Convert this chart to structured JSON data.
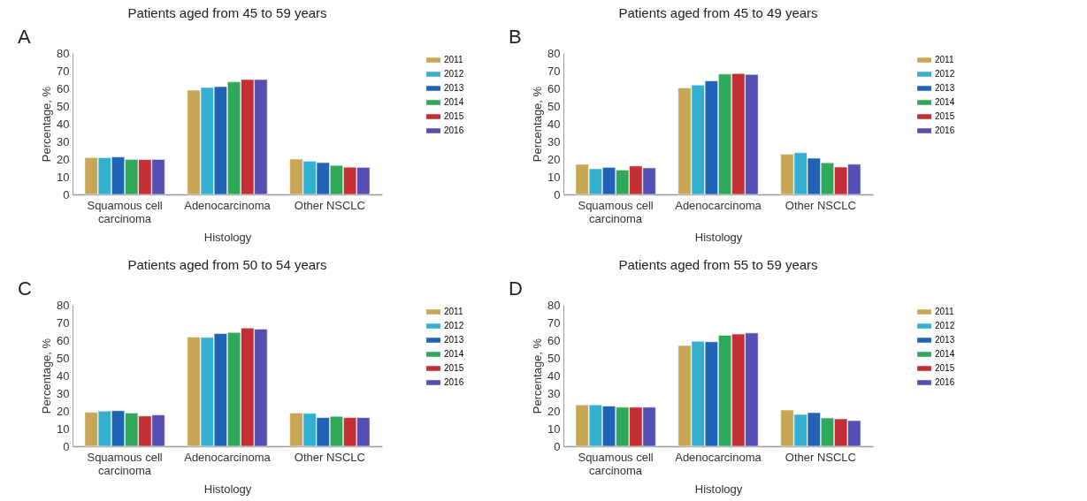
{
  "chart_data": [
    {
      "type": "bar",
      "title": "Patients aged from 45 to 59 years",
      "xlabel": "Histology",
      "ylabel": "Percentage, %",
      "annotations": [
        "A"
      ],
      "categories": [
        "Squamous cell carcinoma",
        "Adenocarcinoma",
        "Other NSCLC"
      ],
      "series": [
        {
          "name": "2011",
          "color": "#c9a656",
          "values": [
            20.8,
            59,
            20
          ]
        },
        {
          "name": "2012",
          "color": "#33afd0",
          "values": [
            20.8,
            60.5,
            18.8
          ]
        },
        {
          "name": "2013",
          "color": "#2062b5",
          "values": [
            21.2,
            61,
            18
          ]
        },
        {
          "name": "2014",
          "color": "#2fa85a",
          "values": [
            19.8,
            63.7,
            16.4
          ]
        },
        {
          "name": "2015",
          "color": "#c42f35",
          "values": [
            19.7,
            65,
            15.4
          ]
        },
        {
          "name": "2016",
          "color": "#564fb3",
          "values": [
            19.8,
            65,
            15.3
          ]
        }
      ],
      "ylim": [
        0,
        80
      ],
      "yticks": [
        0,
        10,
        20,
        30,
        40,
        50,
        60,
        70,
        80
      ],
      "grid": false,
      "legend": "top right"
    },
    {
      "type": "bar",
      "title": "Patients aged from 45 to 49 years",
      "xlabel": "Histology",
      "ylabel": "Percentage, %",
      "annotations": [
        "B"
      ],
      "categories": [
        "Squamous cell carcinoma",
        "Adenocarcinoma",
        "Other NSCLC"
      ],
      "series": [
        {
          "name": "2011",
          "color": "#c9a656",
          "values": [
            17,
            60.3,
            22.8
          ]
        },
        {
          "name": "2012",
          "color": "#33afd0",
          "values": [
            14.5,
            61.9,
            23.6
          ]
        },
        {
          "name": "2013",
          "color": "#2062b5",
          "values": [
            15.3,
            64.2,
            20.5
          ]
        },
        {
          "name": "2014",
          "color": "#2fa85a",
          "values": [
            13.8,
            68.1,
            17.9
          ]
        },
        {
          "name": "2015",
          "color": "#c42f35",
          "values": [
            16.1,
            68.4,
            15.5
          ]
        },
        {
          "name": "2016",
          "color": "#564fb3",
          "values": [
            15,
            67.9,
            17.1
          ]
        }
      ],
      "ylim": [
        0,
        80
      ],
      "yticks": [
        0,
        10,
        20,
        30,
        40,
        50,
        60,
        70,
        80
      ],
      "grid": false,
      "legend": "top right"
    },
    {
      "type": "bar",
      "title": "Patients aged from 50 to 54 years",
      "xlabel": "Histology",
      "ylabel": "Percentage, %",
      "annotations": [
        "C"
      ],
      "categories": [
        "Squamous cell carcinoma",
        "Adenocarcinoma",
        "Other NSCLC"
      ],
      "series": [
        {
          "name": "2011",
          "color": "#c9a656",
          "values": [
            19.2,
            61.8,
            18.8
          ]
        },
        {
          "name": "2012",
          "color": "#33afd0",
          "values": [
            19.9,
            61.6,
            18.6
          ]
        },
        {
          "name": "2013",
          "color": "#2062b5",
          "values": [
            20.1,
            63.8,
            16.2
          ]
        },
        {
          "name": "2014",
          "color": "#2fa85a",
          "values": [
            18.8,
            64.4,
            16.9
          ]
        },
        {
          "name": "2015",
          "color": "#c42f35",
          "values": [
            17.1,
            66.9,
            16.2
          ]
        },
        {
          "name": "2016",
          "color": "#564fb3",
          "values": [
            17.7,
            66.3,
            16.2
          ]
        }
      ],
      "ylim": [
        0,
        80
      ],
      "yticks": [
        0,
        10,
        20,
        30,
        40,
        50,
        60,
        70,
        80
      ],
      "grid": false,
      "legend": "top right"
    },
    {
      "type": "bar",
      "title": "Patients aged from 55 to 59 years",
      "xlabel": "Histology",
      "ylabel": "Percentage, %",
      "annotations": [
        "D"
      ],
      "categories": [
        "Squamous cell carcinoma",
        "Adenocarcinoma",
        "Other NSCLC"
      ],
      "series": [
        {
          "name": "2011",
          "color": "#c9a656",
          "values": [
            23.4,
            57,
            20.5
          ]
        },
        {
          "name": "2012",
          "color": "#33afd0",
          "values": [
            23.4,
            59.4,
            18
          ]
        },
        {
          "name": "2013",
          "color": "#2062b5",
          "values": [
            22.7,
            59.1,
            19
          ]
        },
        {
          "name": "2014",
          "color": "#2fa85a",
          "values": [
            22.1,
            62.8,
            16
          ]
        },
        {
          "name": "2015",
          "color": "#c42f35",
          "values": [
            22.1,
            63.5,
            15.5
          ]
        },
        {
          "name": "2016",
          "color": "#564fb3",
          "values": [
            22.1,
            64.1,
            14.5
          ]
        }
      ],
      "ylim": [
        0,
        80
      ],
      "yticks": [
        0,
        10,
        20,
        30,
        40,
        50,
        60,
        70,
        80
      ],
      "grid": false,
      "legend": "top right"
    }
  ]
}
